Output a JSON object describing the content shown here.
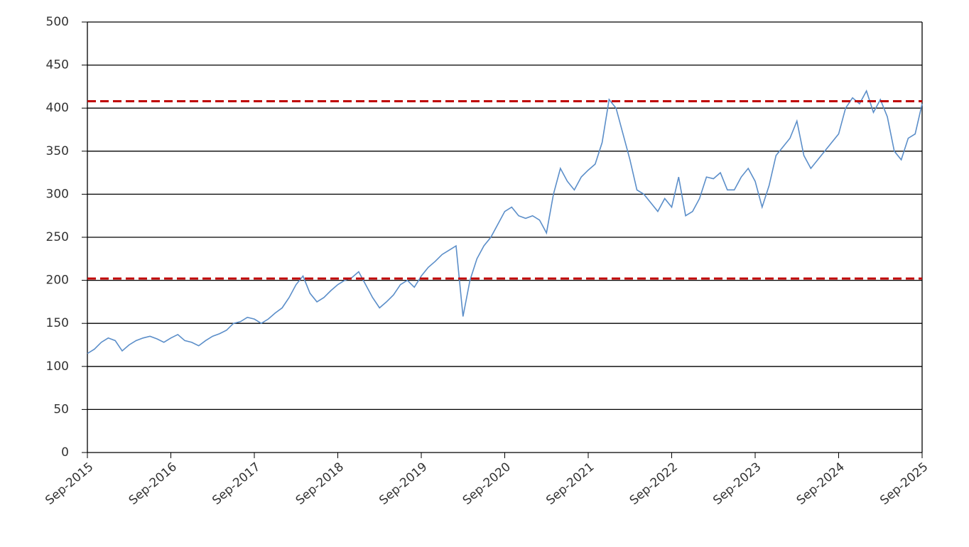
{
  "chart_data": {
    "type": "line",
    "categories": [
      "Sep-2015",
      null,
      null,
      null,
      null,
      null,
      null,
      null,
      null,
      null,
      null,
      null,
      "Sep-2016",
      null,
      null,
      null,
      null,
      null,
      null,
      null,
      null,
      null,
      null,
      null,
      "Sep-2017",
      null,
      null,
      null,
      null,
      null,
      null,
      null,
      null,
      null,
      null,
      null,
      "Sep-2018",
      null,
      null,
      null,
      null,
      null,
      null,
      null,
      null,
      null,
      null,
      null,
      "Sep-2019",
      null,
      null,
      null,
      null,
      null,
      null,
      null,
      null,
      null,
      null,
      null,
      "Sep-2020",
      null,
      null,
      null,
      null,
      null,
      null,
      null,
      null,
      null,
      null,
      null,
      "Sep-2021",
      null,
      null,
      null,
      null,
      null,
      null,
      null,
      null,
      null,
      null,
      null,
      "Sep-2022",
      null,
      null,
      null,
      null,
      null,
      null,
      null,
      null,
      null,
      null,
      null,
      "Sep-2023",
      null,
      null,
      null,
      null,
      null,
      null,
      null,
      null,
      null,
      null,
      null,
      "Sep-2024",
      null,
      null,
      null,
      null,
      null,
      null,
      null,
      null,
      null,
      null,
      null,
      "Sep-2025"
    ],
    "series": [
      {
        "color": "#5b8ec9",
        "values": [
          115,
          120,
          128,
          133,
          130,
          118,
          125,
          130,
          133,
          135,
          132,
          128,
          133,
          137,
          130,
          128,
          124,
          130,
          135,
          138,
          142,
          150,
          152,
          157,
          155,
          150,
          155,
          162,
          168,
          180,
          195,
          205,
          185,
          175,
          180,
          188,
          195,
          200,
          203,
          210,
          195,
          180,
          168,
          175,
          183,
          195,
          200,
          192,
          205,
          215,
          222,
          230,
          235,
          240,
          158,
          200,
          225,
          240,
          250,
          265,
          280,
          285,
          275,
          272,
          275,
          270,
          255,
          300,
          330,
          315,
          305,
          320,
          328,
          335,
          360,
          410,
          400,
          370,
          340,
          305,
          300,
          290,
          280,
          295,
          285,
          320,
          275,
          280,
          295,
          320,
          318,
          325,
          305,
          305,
          320,
          330,
          315,
          285,
          310,
          345,
          355,
          365,
          385,
          345,
          330,
          340,
          350,
          360,
          370,
          400,
          412,
          405,
          420,
          395,
          410,
          390,
          350,
          340,
          365,
          370,
          405
        ]
      }
    ],
    "reference_lines": [
      {
        "value": 408,
        "color": "#c00000"
      },
      {
        "value": 202,
        "color": "#c00000"
      }
    ],
    "ylim": [
      0,
      500
    ],
    "yticks": [
      0,
      50,
      100,
      150,
      200,
      250,
      300,
      350,
      400,
      450,
      500
    ],
    "grid": true
  }
}
